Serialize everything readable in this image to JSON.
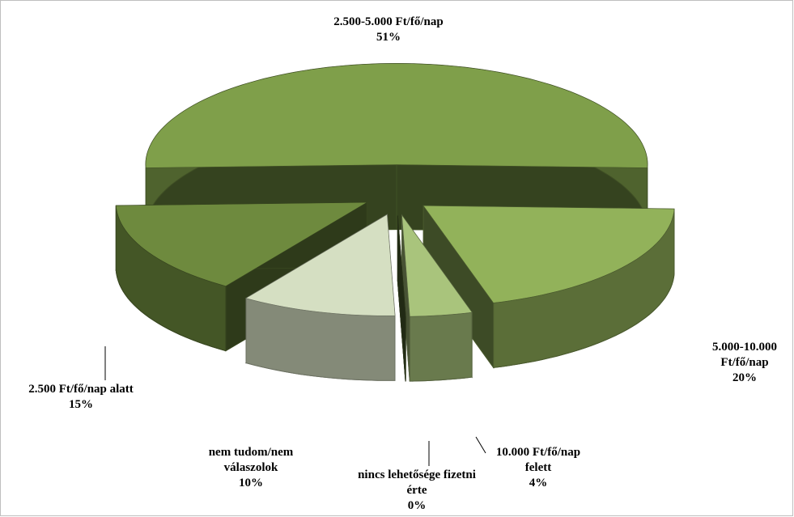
{
  "chart_data": {
    "type": "pie3d",
    "categories": [
      "2.500-5.000 Ft/fő/nap",
      "5.000-10.000 Ft/fő/nap",
      "10.000 Ft/fő/nap felett",
      "nincs lehetősége fizetni érte",
      "nem tudom/nem válaszolok",
      "2.500 Ft/fő/nap alatt"
    ],
    "values": [
      51,
      20,
      4,
      0,
      10,
      15
    ],
    "value_labels": [
      "51%",
      "20%",
      "4%",
      "0%",
      "10%",
      "15%"
    ],
    "colors": [
      "#7f9f4a",
      "#92b25a",
      "#a9c47c",
      "#4f6330",
      "#d5dfc2",
      "#6e8a3e"
    ]
  }
}
